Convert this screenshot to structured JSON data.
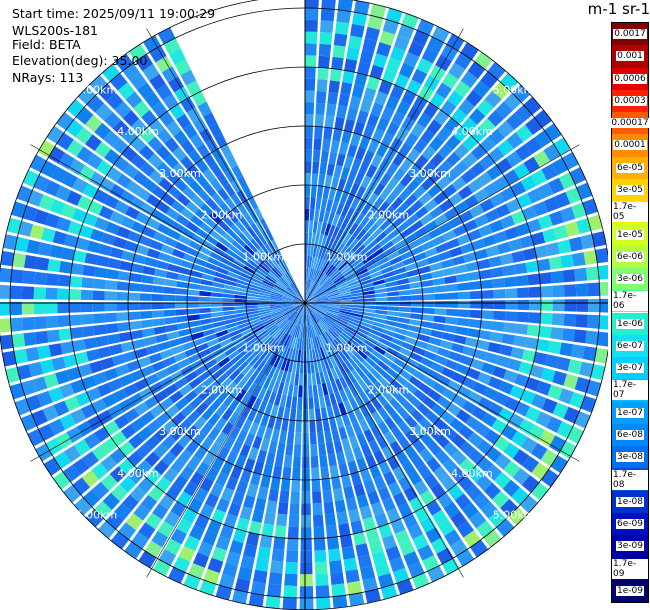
{
  "info": {
    "start_time": "Start time: 2025/09/11 19:00:29",
    "instrument": "WLS200s-181",
    "field": "Field: BETA",
    "elevation": "Elevation(deg): 35.00",
    "nrays": "NRays: 113"
  },
  "colorbar": {
    "title": "m-1 sr-1",
    "levels": [
      "0.0017",
      "0.001",
      "0.0006",
      "0.0003",
      "0.00017",
      "0.0001",
      "6e-05",
      "3e-05",
      "1.7e-05",
      "1e-05",
      "6e-06",
      "3e-06",
      "1.7e-06",
      "1e-06",
      "6e-07",
      "3e-07",
      "1.7e-07",
      "1e-07",
      "6e-08",
      "3e-08",
      "1.7e-08",
      "1e-08",
      "6e-09",
      "3e-09",
      "1.7e-09",
      "1e-09"
    ],
    "colors": [
      "#7f0000",
      "#b00000",
      "#e00000",
      "#ff2000",
      "#ff5a00",
      "#ff8c00",
      "#ffb000",
      "#ffd200",
      "#f0f000",
      "#d2ff20",
      "#b0ff40",
      "#80ff70",
      "#50ffa0",
      "#20f0d0",
      "#10e0f0",
      "#00d0ff",
      "#00b8ff",
      "#00a0ff",
      "#0088ff",
      "#0070f0",
      "#0050e0",
      "#0030d0",
      "#0010c0",
      "#0000a8",
      "#000090",
      "#000070"
    ]
  },
  "chart_data": {
    "type": "ppi",
    "field": "BETA",
    "units": "m-1 sr-1",
    "elevation_deg": 35.0,
    "nrays": 113,
    "range_rings_km": [
      1,
      2,
      3,
      4,
      5
    ],
    "ring_labels": [
      "1.00km",
      "2.00km",
      "3.00km",
      "4.00km",
      "5.00km"
    ],
    "missing_sector_deg": [
      335,
      360
    ],
    "max_range_km": 5.2
  }
}
